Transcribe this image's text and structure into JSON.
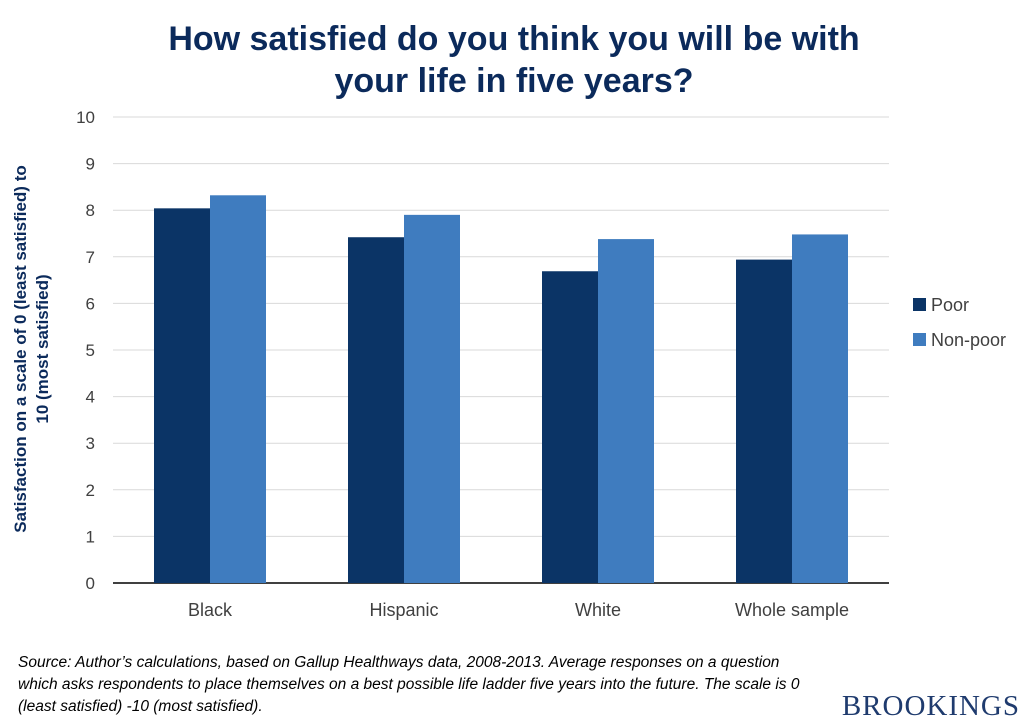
{
  "chart_data": {
    "type": "bar",
    "title_lines": [
      "How satisfied do you think you will be with",
      "your life in five years?"
    ],
    "ylabel_lines": [
      "Satisfaction on a scale of 0 (least satisfied) to",
      "10 (most satisfied)"
    ],
    "xlabel": "",
    "categories": [
      "Black",
      "Hispanic",
      "White",
      "Whole sample"
    ],
    "series": [
      {
        "name": "Poor",
        "color": "#0b3466",
        "values": [
          8.04,
          7.42,
          6.69,
          6.94
        ]
      },
      {
        "name": "Non-poor",
        "color": "#3f7cbf",
        "values": [
          8.32,
          7.9,
          7.38,
          7.48
        ]
      }
    ],
    "ylim": [
      0,
      10
    ],
    "yticks": [
      "0",
      "1",
      "2",
      "3",
      "4",
      "5",
      "6",
      "7",
      "8",
      "9",
      "10"
    ],
    "grid": true,
    "legend_position": "right"
  },
  "source_note": "Source: Author’s calculations, based on Gallup Healthways data, 2008-2013. Average responses on a question which asks respondents to place themselves on a best possible life ladder five years into the future. The scale is 0 (least satisfied) -10 (most satisfied).",
  "brand": "BROOKINGS"
}
